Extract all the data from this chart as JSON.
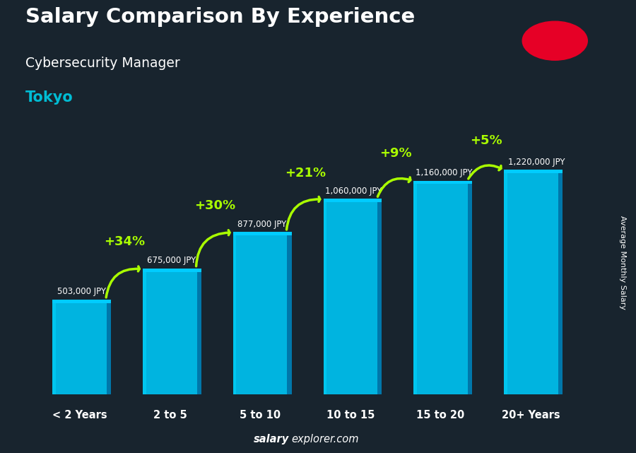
{
  "title_line1": "Salary Comparison By Experience",
  "subtitle_line1": "Cybersecurity Manager",
  "subtitle_line2": "Tokyo",
  "categories": [
    "< 2 Years",
    "2 to 5",
    "5 to 10",
    "10 to 15",
    "15 to 20",
    "20+ Years"
  ],
  "values": [
    503000,
    675000,
    877000,
    1060000,
    1160000,
    1220000
  ],
  "value_labels": [
    "503,000 JPY",
    "675,000 JPY",
    "877,000 JPY",
    "1,060,000 JPY",
    "1,160,000 JPY",
    "1,220,000 JPY"
  ],
  "pct_labels": [
    "+34%",
    "+30%",
    "+21%",
    "+9%",
    "+5%"
  ],
  "bar_color_face": "#00b4e0",
  "bar_color_side": "#0077aa",
  "bar_color_top": "#00ccff",
  "bg_color": "#18242e",
  "text_color_white": "#ffffff",
  "text_color_cyan": "#00bcd4",
  "text_color_green": "#aaff00",
  "footer_salary_bold": "salary",
  "footer_rest": "explorer.com",
  "ylabel": "Average Monthly Salary",
  "ylim": [
    0,
    1450000
  ],
  "flag_red": "#e60026"
}
